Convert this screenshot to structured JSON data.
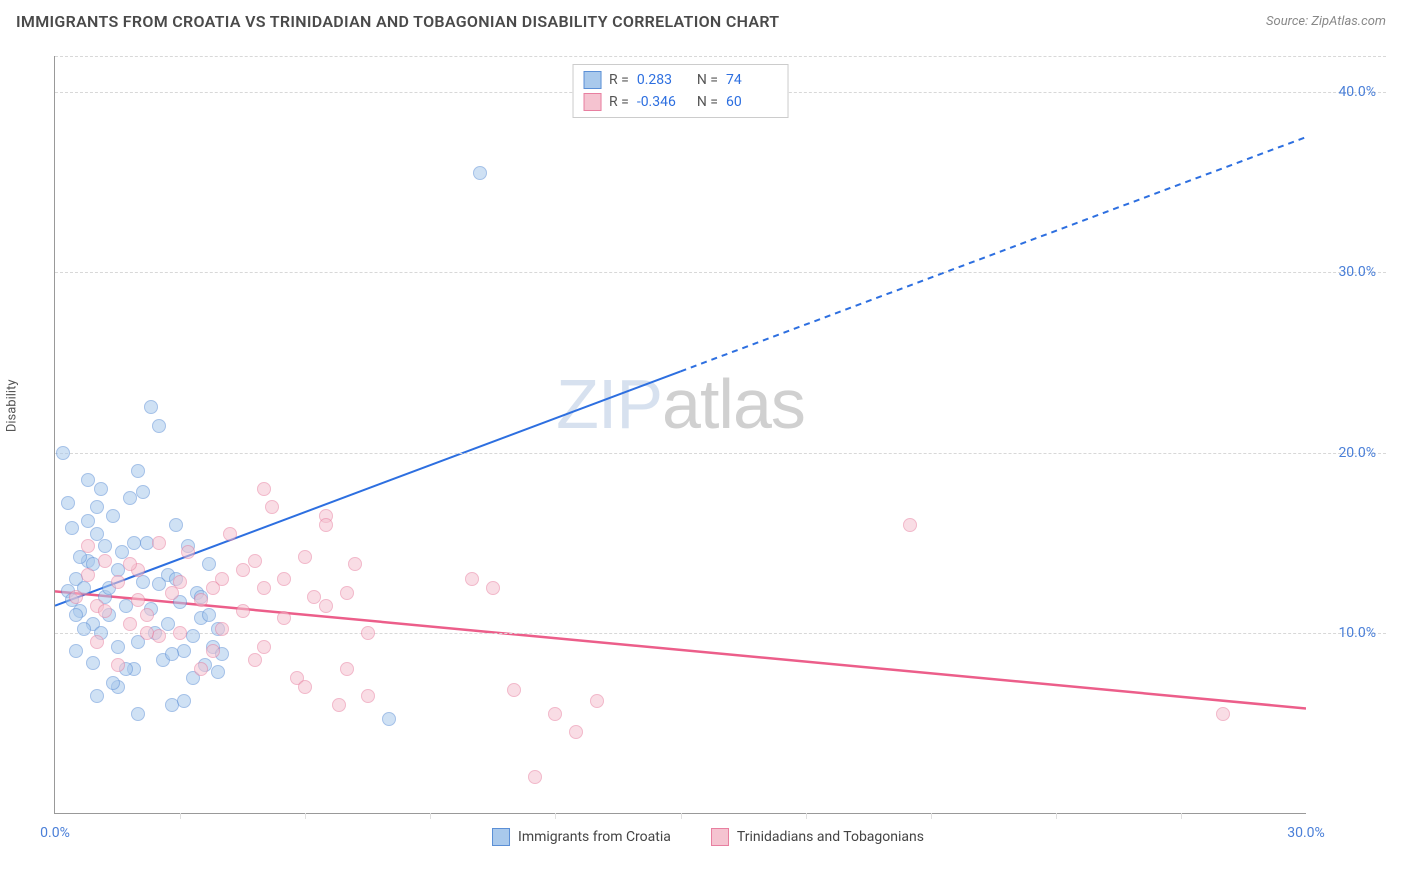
{
  "title": "IMMIGRANTS FROM CROATIA VS TRINIDADIAN AND TOBAGONIAN DISABILITY CORRELATION CHART",
  "source": "Source: ZipAtlas.com",
  "y_axis_label": "Disability",
  "watermark": {
    "part1": "ZIP",
    "part2": "atlas"
  },
  "chart": {
    "type": "scatter",
    "xlim": [
      0,
      30
    ],
    "ylim": [
      0,
      42
    ],
    "x_ticks": [
      0,
      30
    ],
    "x_tick_labels": [
      "0.0%",
      "30.0%"
    ],
    "y_ticks": [
      10,
      20,
      30,
      40
    ],
    "y_tick_labels": [
      "10.0%",
      "20.0%",
      "30.0%",
      "40.0%"
    ],
    "grid_color": "#d8d8d8",
    "background_color": "#ffffff",
    "marker_radius": 7,
    "marker_opacity": 0.55,
    "series": [
      {
        "name": "Immigrants from Croatia",
        "color_fill": "#a9c9ec",
        "color_stroke": "#5b8fd6",
        "r_value": "0.283",
        "n_value": "74",
        "r_color": "#2d6fe0",
        "trend": {
          "x1": 0,
          "y1": 11.5,
          "x2": 30,
          "y2": 37.5,
          "solid_until_x": 15,
          "color": "#2d6fe0",
          "width": 2
        },
        "points": [
          [
            0.3,
            12.3
          ],
          [
            0.4,
            11.8
          ],
          [
            0.5,
            13.0
          ],
          [
            0.6,
            11.2
          ],
          [
            0.7,
            12.5
          ],
          [
            0.8,
            14.0
          ],
          [
            0.9,
            10.5
          ],
          [
            1.0,
            15.5
          ],
          [
            1.0,
            17.0
          ],
          [
            1.1,
            18.0
          ],
          [
            1.2,
            12.0
          ],
          [
            1.3,
            11.0
          ],
          [
            1.4,
            16.5
          ],
          [
            1.5,
            13.5
          ],
          [
            1.6,
            14.5
          ],
          [
            1.7,
            11.5
          ],
          [
            1.8,
            17.5
          ],
          [
            1.9,
            8.0
          ],
          [
            2.0,
            19.0
          ],
          [
            2.0,
            9.5
          ],
          [
            2.1,
            12.8
          ],
          [
            2.2,
            15.0
          ],
          [
            2.3,
            22.5
          ],
          [
            2.4,
            10.0
          ],
          [
            2.5,
            21.5
          ],
          [
            2.6,
            8.5
          ],
          [
            2.7,
            13.2
          ],
          [
            2.8,
            6.0
          ],
          [
            2.9,
            16.0
          ],
          [
            3.0,
            11.7
          ],
          [
            3.1,
            9.0
          ],
          [
            3.2,
            14.8
          ],
          [
            3.3,
            7.5
          ],
          [
            3.4,
            12.2
          ],
          [
            3.5,
            10.8
          ],
          [
            3.6,
            8.2
          ],
          [
            3.7,
            13.8
          ],
          [
            3.8,
            9.2
          ],
          [
            3.9,
            7.8
          ],
          [
            4.0,
            8.8
          ],
          [
            0.2,
            20.0
          ],
          [
            0.4,
            15.8
          ],
          [
            0.6,
            14.2
          ],
          [
            0.8,
            16.2
          ],
          [
            0.5,
            11.0
          ],
          [
            0.7,
            10.2
          ],
          [
            0.9,
            13.8
          ],
          [
            1.1,
            10.0
          ],
          [
            1.3,
            12.5
          ],
          [
            1.5,
            9.2
          ],
          [
            1.7,
            8.0
          ],
          [
            1.9,
            15.0
          ],
          [
            2.1,
            17.8
          ],
          [
            2.3,
            11.3
          ],
          [
            2.5,
            12.7
          ],
          [
            2.7,
            10.5
          ],
          [
            2.9,
            13.0
          ],
          [
            3.1,
            6.2
          ],
          [
            3.3,
            9.8
          ],
          [
            3.5,
            12.0
          ],
          [
            3.7,
            11.0
          ],
          [
            3.9,
            10.2
          ],
          [
            1.0,
            6.5
          ],
          [
            1.5,
            7.0
          ],
          [
            2.0,
            5.5
          ],
          [
            0.3,
            17.2
          ],
          [
            0.8,
            18.5
          ],
          [
            1.2,
            14.8
          ],
          [
            8.0,
            5.2
          ],
          [
            10.2,
            35.5
          ],
          [
            0.5,
            9.0
          ],
          [
            0.9,
            8.3
          ],
          [
            1.4,
            7.2
          ],
          [
            2.8,
            8.8
          ]
        ]
      },
      {
        "name": "Trinidadians and Tobagonians",
        "color_fill": "#f5c3d0",
        "color_stroke": "#e87fa0",
        "r_value": "-0.346",
        "n_value": "60",
        "r_color": "#2d6fe0",
        "trend": {
          "x1": 0,
          "y1": 12.3,
          "x2": 30,
          "y2": 5.8,
          "solid_until_x": 30,
          "color": "#ec5e8a",
          "width": 2.5
        },
        "points": [
          [
            0.5,
            12.0
          ],
          [
            0.8,
            13.2
          ],
          [
            1.0,
            11.5
          ],
          [
            1.2,
            14.0
          ],
          [
            1.5,
            12.8
          ],
          [
            1.8,
            10.5
          ],
          [
            2.0,
            13.5
          ],
          [
            2.2,
            11.0
          ],
          [
            2.5,
            15.0
          ],
          [
            2.8,
            12.2
          ],
          [
            3.0,
            10.0
          ],
          [
            3.2,
            14.5
          ],
          [
            3.5,
            11.8
          ],
          [
            3.8,
            9.0
          ],
          [
            4.0,
            13.0
          ],
          [
            4.2,
            15.5
          ],
          [
            4.5,
            11.2
          ],
          [
            4.8,
            8.5
          ],
          [
            5.0,
            12.5
          ],
          [
            5.0,
            18.0
          ],
          [
            5.2,
            17.0
          ],
          [
            5.5,
            10.8
          ],
          [
            5.8,
            7.5
          ],
          [
            6.0,
            14.2
          ],
          [
            6.5,
            16.5
          ],
          [
            6.2,
            12.0
          ],
          [
            6.8,
            6.0
          ],
          [
            6.5,
            16.0
          ],
          [
            7.0,
            8.0
          ],
          [
            7.2,
            13.8
          ],
          [
            7.5,
            6.5
          ],
          [
            10.0,
            13.0
          ],
          [
            10.5,
            12.5
          ],
          [
            11.0,
            6.8
          ],
          [
            12.0,
            5.5
          ],
          [
            12.5,
            4.5
          ],
          [
            13.0,
            6.2
          ],
          [
            11.5,
            2.0
          ],
          [
            1.0,
            9.5
          ],
          [
            1.5,
            8.2
          ],
          [
            2.0,
            11.8
          ],
          [
            2.5,
            9.8
          ],
          [
            3.0,
            12.8
          ],
          [
            3.5,
            8.0
          ],
          [
            4.0,
            10.2
          ],
          [
            4.5,
            13.5
          ],
          [
            5.0,
            9.2
          ],
          [
            5.5,
            13.0
          ],
          [
            6.0,
            7.0
          ],
          [
            6.5,
            11.5
          ],
          [
            7.0,
            12.2
          ],
          [
            7.5,
            10.0
          ],
          [
            0.8,
            14.8
          ],
          [
            1.2,
            11.2
          ],
          [
            1.8,
            13.8
          ],
          [
            2.2,
            10.0
          ],
          [
            20.5,
            16.0
          ],
          [
            28.0,
            5.5
          ],
          [
            3.8,
            12.5
          ],
          [
            4.8,
            14.0
          ]
        ]
      }
    ]
  },
  "legend_top": {
    "r_label": "R =",
    "n_label": "N ="
  },
  "legend_bottom": {
    "items": [
      "Immigrants from Croatia",
      "Trinidadians and Tobagonians"
    ]
  }
}
